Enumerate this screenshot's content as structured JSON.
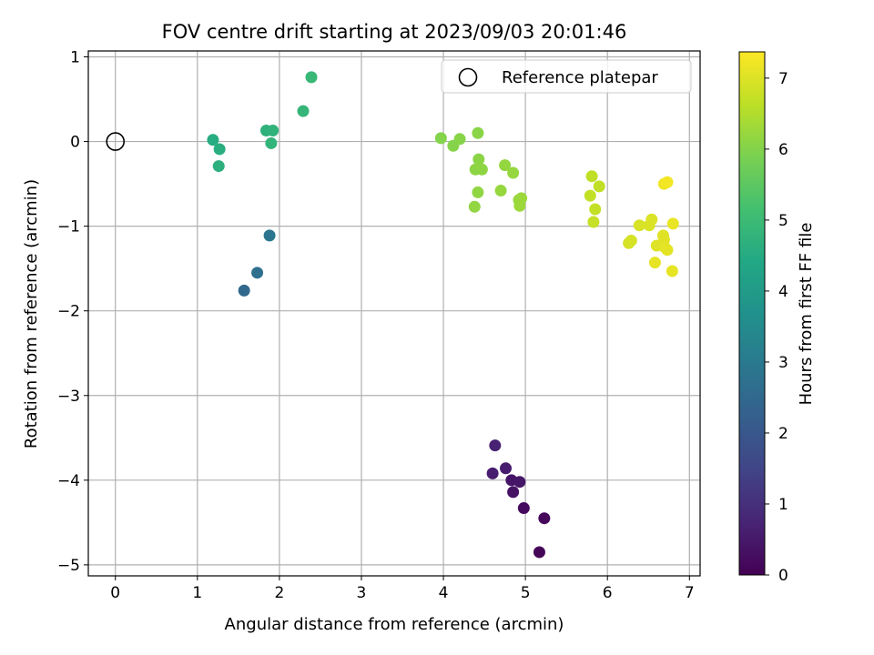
{
  "chart_data": {
    "type": "scatter",
    "title": "FOV centre drift starting at 2023/09/03 20:01:46",
    "xlabel": "Angular distance from reference (arcmin)",
    "ylabel": "Rotation from reference (arcmin)",
    "xlim": [
      -0.33,
      7.13
    ],
    "ylim": [
      -5.13,
      1.07
    ],
    "xticks": [
      0,
      1,
      2,
      3,
      4,
      5,
      6,
      7
    ],
    "yticks": [
      1,
      0,
      -1,
      -2,
      -3,
      -4,
      -5
    ],
    "xtick_labels": [
      "0",
      "1",
      "2",
      "3",
      "4",
      "5",
      "6",
      "7"
    ],
    "ytick_labels": [
      "1",
      "0",
      "−1",
      "−2",
      "−3",
      "−4",
      "−5"
    ],
    "grid": true,
    "legend": {
      "placement": "top-right",
      "entries": [
        "Reference platepar"
      ]
    },
    "colorbar": {
      "label": "Hours from first FF file",
      "colormap": "viridis",
      "range": [
        0,
        7.37
      ],
      "ticks": [
        0,
        1,
        2,
        3,
        4,
        5,
        6,
        7
      ],
      "tick_labels": [
        "0",
        "1",
        "2",
        "3",
        "4",
        "5",
        "6",
        "7"
      ]
    },
    "reference_point": {
      "x": 0,
      "y": 0
    },
    "points": [
      {
        "x": 5.17,
        "y": -4.85,
        "c": 0.1
      },
      {
        "x": 5.23,
        "y": -4.45,
        "c": 0.15
      },
      {
        "x": 4.98,
        "y": -4.33,
        "c": 0.2
      },
      {
        "x": 4.85,
        "y": -4.14,
        "c": 0.35
      },
      {
        "x": 4.83,
        "y": -4.0,
        "c": 0.4
      },
      {
        "x": 4.93,
        "y": -4.02,
        "c": 0.45
      },
      {
        "x": 4.76,
        "y": -3.86,
        "c": 0.55
      },
      {
        "x": 4.6,
        "y": -3.92,
        "c": 0.6
      },
      {
        "x": 4.63,
        "y": -3.59,
        "c": 0.7
      },
      {
        "x": 1.57,
        "y": -1.76,
        "c": 2.5
      },
      {
        "x": 1.73,
        "y": -1.55,
        "c": 2.7
      },
      {
        "x": 1.88,
        "y": -1.11,
        "c": 2.9
      },
      {
        "x": 1.19,
        "y": 0.02,
        "c": 4.55
      },
      {
        "x": 1.27,
        "y": -0.09,
        "c": 4.6
      },
      {
        "x": 1.26,
        "y": -0.29,
        "c": 4.65
      },
      {
        "x": 1.84,
        "y": 0.13,
        "c": 4.7
      },
      {
        "x": 1.92,
        "y": 0.13,
        "c": 4.75
      },
      {
        "x": 1.9,
        "y": -0.02,
        "c": 4.8
      },
      {
        "x": 2.29,
        "y": 0.36,
        "c": 4.85
      },
      {
        "x": 2.39,
        "y": 0.76,
        "c": 4.9
      },
      {
        "x": 3.97,
        "y": 0.04,
        "c": 6.0
      },
      {
        "x": 4.12,
        "y": -0.05,
        "c": 6.02
      },
      {
        "x": 4.2,
        "y": 0.03,
        "c": 6.04
      },
      {
        "x": 4.42,
        "y": 0.1,
        "c": 6.06
      },
      {
        "x": 4.43,
        "y": -0.21,
        "c": 6.08
      },
      {
        "x": 4.39,
        "y": -0.33,
        "c": 6.1
      },
      {
        "x": 4.47,
        "y": -0.33,
        "c": 6.12
      },
      {
        "x": 4.42,
        "y": -0.6,
        "c": 6.14
      },
      {
        "x": 4.38,
        "y": -0.77,
        "c": 6.16
      },
      {
        "x": 4.75,
        "y": -0.28,
        "c": 6.18
      },
      {
        "x": 4.85,
        "y": -0.37,
        "c": 6.2
      },
      {
        "x": 4.7,
        "y": -0.58,
        "c": 6.22
      },
      {
        "x": 4.92,
        "y": -0.69,
        "c": 6.24
      },
      {
        "x": 4.95,
        "y": -0.67,
        "c": 6.26
      },
      {
        "x": 4.93,
        "y": -0.76,
        "c": 6.28
      },
      {
        "x": 5.81,
        "y": -0.41,
        "c": 6.65
      },
      {
        "x": 5.9,
        "y": -0.53,
        "c": 6.67
      },
      {
        "x": 5.79,
        "y": -0.64,
        "c": 6.69
      },
      {
        "x": 5.85,
        "y": -0.8,
        "c": 6.71
      },
      {
        "x": 5.83,
        "y": -0.95,
        "c": 6.73
      },
      {
        "x": 6.26,
        "y": -1.2,
        "c": 6.9
      },
      {
        "x": 6.29,
        "y": -1.17,
        "c": 6.92
      },
      {
        "x": 6.39,
        "y": -0.99,
        "c": 6.94
      },
      {
        "x": 6.51,
        "y": -0.99,
        "c": 6.96
      },
      {
        "x": 6.54,
        "y": -0.92,
        "c": 6.98
      },
      {
        "x": 6.6,
        "y": -1.23,
        "c": 7.0
      },
      {
        "x": 6.68,
        "y": -1.11,
        "c": 7.02
      },
      {
        "x": 6.69,
        "y": -1.16,
        "c": 7.04
      },
      {
        "x": 6.7,
        "y": -1.25,
        "c": 7.06
      },
      {
        "x": 6.73,
        "y": -1.28,
        "c": 7.08
      },
      {
        "x": 6.58,
        "y": -1.43,
        "c": 7.1
      },
      {
        "x": 6.79,
        "y": -1.53,
        "c": 7.12
      },
      {
        "x": 6.8,
        "y": -0.97,
        "c": 7.14
      },
      {
        "x": 6.69,
        "y": -0.5,
        "c": 7.2
      },
      {
        "x": 6.73,
        "y": -0.48,
        "c": 7.25
      }
    ]
  }
}
